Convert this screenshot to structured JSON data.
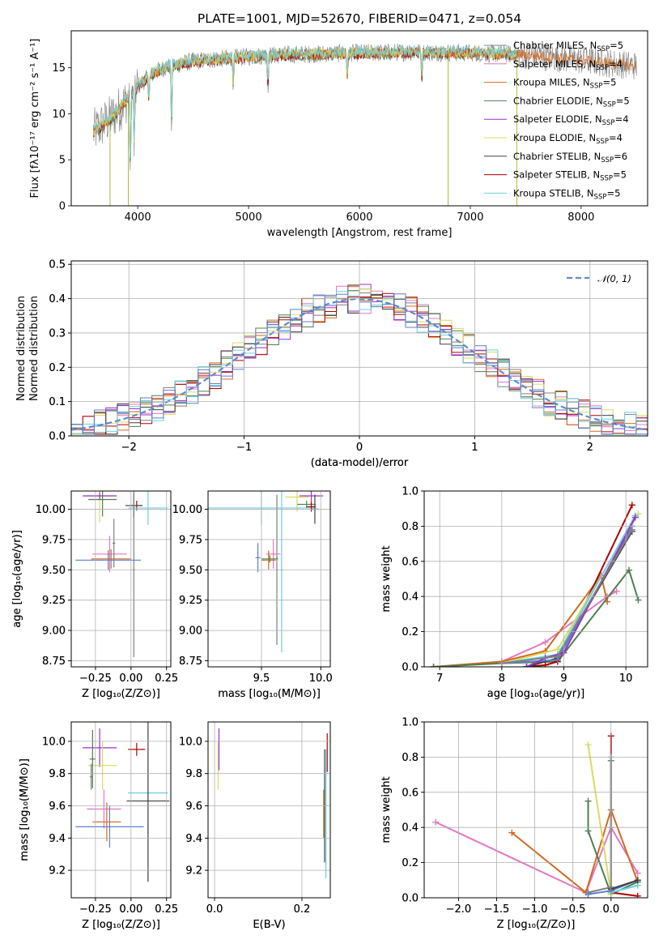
{
  "colors": {
    "Chabrier MILES": "#7f7f7f",
    "Salpeter MILES": "#e377c2",
    "Kroupa MILES": "#d2691e",
    "Chabrier ELODIE": "#4f7f4f",
    "Salpeter ELODIE": "#9932cc",
    "Kroupa ELODIE": "#dbdb60",
    "Chabrier STELIB": "#404040",
    "Salpeter STELIB": "#b00000",
    "Kroupa STELIB": "#6ad0e0",
    "extra_blue": "#5b7fcf",
    "normal_curve": "#5b8bd0"
  },
  "chart_data": [
    {
      "id": "spectrum",
      "type": "line",
      "title": "PLATE=1001, MJD=52670, FIBERID=0471, z=0.054",
      "xlabel": "wavelength [Angstrom, rest frame]",
      "ylabel": "Flux [fλ10⁻¹⁷ erg cm⁻² s⁻¹ A⁻¹]",
      "xlim": [
        3400,
        8600
      ],
      "ylim": [
        0,
        19
      ],
      "xticks": [
        "4000",
        "5000",
        "6000",
        "7000",
        "8000"
      ],
      "yticks": [
        "0",
        "5",
        "10",
        "15"
      ],
      "legend_position": "right",
      "legend": [
        {
          "model": "Chabrier MILES",
          "label": "Chabrier MILES, N",
          "sub": "SSP",
          "suffix": "=5"
        },
        {
          "model": "Salpeter MILES",
          "label": "Salpeter MILES, N",
          "sub": "SSP",
          "suffix": "=4"
        },
        {
          "model": "Kroupa MILES",
          "label": "Kroupa MILES, N",
          "sub": "SSP",
          "suffix": "=5"
        },
        {
          "model": "Chabrier ELODIE",
          "label": "Chabrier ELODIE, N",
          "sub": "SSP",
          "suffix": "=5"
        },
        {
          "model": "Salpeter ELODIE",
          "label": "Salpeter ELODIE, N",
          "sub": "SSP",
          "suffix": "=4"
        },
        {
          "model": "Kroupa ELODIE",
          "label": "Kroupa ELODIE, N",
          "sub": "SSP",
          "suffix": "=4"
        },
        {
          "model": "Chabrier STELIB",
          "label": "Chabrier STELIB, N",
          "sub": "SSP",
          "suffix": "=6"
        },
        {
          "model": "Salpeter STELIB",
          "label": "Salpeter STELIB, N",
          "sub": "SSP",
          "suffix": "=5"
        },
        {
          "model": "Kroupa STELIB",
          "label": "Kroupa STELIB, N",
          "sub": "SSP",
          "suffix": "=5"
        }
      ],
      "continuum": {
        "x": [
          3600,
          3700,
          3800,
          3900,
          4000,
          4100,
          4200,
          4300,
          4500,
          4700,
          5000,
          5300,
          5600,
          6000,
          6500,
          7000,
          7500,
          8000,
          8500
        ],
        "y": [
          8.0,
          9.0,
          10.0,
          11.5,
          13.0,
          14.0,
          14.8,
          15.2,
          15.7,
          15.9,
          16.2,
          16.4,
          16.5,
          16.6,
          16.7,
          16.6,
          16.4,
          15.8,
          15.2
        ]
      },
      "absorption_dips": [
        {
          "x": 3933,
          "y": 3.5
        },
        {
          "x": 3968,
          "y": 6.5
        },
        {
          "x": 4101,
          "y": 11.5
        },
        {
          "x": 4305,
          "y": 8.5
        },
        {
          "x": 4861,
          "y": 13.5
        },
        {
          "x": 5175,
          "y": 13.0
        },
        {
          "x": 5890,
          "y": 14.0
        },
        {
          "x": 6563,
          "y": 14.0
        }
      ],
      "spikes": [
        {
          "x": 3750,
          "y": 0
        },
        {
          "x": 3915,
          "y": 0
        },
        {
          "x": 6800,
          "y": 0
        },
        {
          "x": 7420,
          "y": 0
        }
      ]
    },
    {
      "id": "residuals",
      "type": "step",
      "xlabel": "(data-model)/error",
      "ylabel": "Normed distribution",
      "xlim": [
        -2.5,
        2.5
      ],
      "ylim": [
        0,
        0.51
      ],
      "xticks": [
        "−2",
        "−1",
        "0",
        "1",
        "2"
      ],
      "yticks": [
        "0.0",
        "0.1",
        "0.2",
        "0.3",
        "0.4",
        "0.5"
      ],
      "legend": [
        {
          "label": "𝒩(0, 1)",
          "style": "dashed"
        }
      ],
      "bin_width": 0.1,
      "x_start": -2.5,
      "normal_mean": 0,
      "normal_sigma": 1
    },
    {
      "id": "age_vs_Z",
      "type": "errorbar",
      "xlabel": "Z [log₁₀(Z/Z⊙)]",
      "ylabel": "age  [log₁₀(age/yr)]",
      "xlim": [
        -0.42,
        0.28
      ],
      "ylim": [
        8.7,
        10.15
      ],
      "xticks": [
        "−0.25",
        "0.00",
        "0.25"
      ],
      "yticks": [
        "8.75",
        "9.00",
        "9.25",
        "9.50",
        "9.75",
        "10.00"
      ],
      "points": [
        {
          "model": "Kroupa ELODIE",
          "x": -0.22,
          "xerr": 0.1,
          "y": 10.11,
          "yerr": 0.22
        },
        {
          "model": "Salpeter ELODIE",
          "x": -0.22,
          "xerr": 0.12,
          "y": 10.11,
          "yerr": 0.03
        },
        {
          "model": "Chabrier ELODIE",
          "x": -0.2,
          "xerr": 0.1,
          "y": 10.08,
          "yerr": 0.14
        },
        {
          "model": "Salpeter STELIB",
          "x": 0.04,
          "xerr": 0.04,
          "y": 10.03,
          "yerr": 0.04
        },
        {
          "model": "Chabrier STELIB",
          "x": 0.02,
          "xerr": 0.06,
          "y": 10.03,
          "yerr": 0.1
        },
        {
          "model": "Kroupa STELIB",
          "x": 0.12,
          "xerr": 0.14,
          "y": 10.01,
          "yerr": 0.14
        },
        {
          "model": "Chabrier MILES",
          "x": 0.02,
          "xerr": 0.01,
          "y": 9.5,
          "yerr": 0.72
        },
        {
          "model": "Salpeter MILES",
          "x": -0.15,
          "xerr": 0.12,
          "y": 9.63,
          "yerr": 0.15
        },
        {
          "model": "Kroupa MILES",
          "x": -0.14,
          "xerr": 0.14,
          "y": 9.59,
          "yerr": 0.08
        },
        {
          "model": "extra_blue",
          "x": -0.16,
          "xerr": 0.23,
          "y": 9.58,
          "yerr": 0.08
        },
        {
          "model": "Chabrier MILES",
          "x": -0.12,
          "xerr": 0.01,
          "y": 9.72,
          "yerr": 0.2
        }
      ]
    },
    {
      "id": "age_vs_mass",
      "type": "errorbar",
      "xlabel": "mass [log₁₀(M/M⊙)]",
      "ylabel": "",
      "xlim": [
        9.05,
        10.08
      ],
      "ylim": [
        8.7,
        10.15
      ],
      "xticks": [
        "9.5",
        "10.0"
      ],
      "yticks": [
        "8.75",
        "9.00",
        "9.25",
        "9.50",
        "9.75",
        "10.00"
      ],
      "points": [
        {
          "model": "Salpeter ELODIE",
          "x": 9.92,
          "xerr": 0.1,
          "y": 10.11,
          "yerr": 0.1
        },
        {
          "model": "Kroupa ELODIE",
          "x": 9.8,
          "xerr": 0.1,
          "y": 10.1,
          "yerr": 0.12
        },
        {
          "model": "Chabrier ELODIE",
          "x": 9.88,
          "xerr": 0.08,
          "y": 10.04,
          "yerr": 0.03
        },
        {
          "model": "Kroupa STELIB",
          "x": 9.5,
          "xerr": 0.45,
          "y": 10.01,
          "yerr": 0.14
        },
        {
          "model": "Salpeter STELIB",
          "x": 9.92,
          "xerr": 0.04,
          "y": 10.02,
          "yerr": 0.04
        },
        {
          "model": "Chabrier MILES",
          "x": 9.63,
          "xerr": 0.01,
          "y": 9.5,
          "yerr": 0.62
        },
        {
          "model": "Kroupa STELIB",
          "x": 9.67,
          "xerr": 0.01,
          "y": 9.5,
          "yerr": 0.68
        },
        {
          "model": "Salpeter MILES",
          "x": 9.6,
          "xerr": 0.06,
          "y": 9.63,
          "yerr": 0.12
        },
        {
          "model": "Kroupa MILES",
          "x": 9.56,
          "xerr": 0.06,
          "y": 9.58,
          "yerr": 0.08
        },
        {
          "model": "Chabrier ELODIE",
          "x": 9.57,
          "xerr": 0.07,
          "y": 9.59,
          "yerr": 0.03
        },
        {
          "model": "extra_blue",
          "x": 9.47,
          "xerr": 0.02,
          "y": 9.6,
          "yerr": 0.12
        },
        {
          "model": "Chabrier STELIB",
          "x": 9.95,
          "xerr": 0.03,
          "y": 10.0,
          "yerr": 0.12
        }
      ]
    },
    {
      "id": "weight_vs_age",
      "type": "line",
      "xlabel": "age  [log₁₀(age/yr)]",
      "ylabel": "mass weight",
      "xlim": [
        6.75,
        10.35
      ],
      "ylim": [
        0,
        1
      ],
      "xticks": [
        "7",
        "8",
        "9",
        "10"
      ],
      "yticks": [
        "0.0",
        "0.2",
        "0.4",
        "0.6",
        "0.8",
        "1.0"
      ],
      "series": [
        {
          "model": "Salpeter MILES",
          "x": [
            6.9,
            8.0,
            8.7,
            9.7,
            9.85
          ],
          "y": [
            0.0,
            0.03,
            0.14,
            0.4,
            0.43
          ]
        },
        {
          "model": "Kroupa MILES",
          "x": [
            6.9,
            8.0,
            8.7,
            9.6,
            9.7
          ],
          "y": [
            0.0,
            0.03,
            0.09,
            0.52,
            0.37
          ]
        },
        {
          "model": "Chabrier ELODIE",
          "x": [
            6.9,
            8.0,
            8.9,
            10.05,
            10.2
          ],
          "y": [
            0.0,
            0.02,
            0.03,
            0.55,
            0.38
          ]
        },
        {
          "model": "Salpeter STELIB",
          "x": [
            8.4,
            8.7,
            8.9,
            10.1
          ],
          "y": [
            0.0,
            0.01,
            0.03,
            0.92
          ]
        },
        {
          "model": "Chabrier STELIB",
          "x": [
            8.4,
            8.9,
            10.1
          ],
          "y": [
            0.0,
            0.05,
            0.77
          ]
        },
        {
          "model": "extra_blue",
          "x": [
            8.0,
            8.9,
            10.1
          ],
          "y": [
            0.02,
            0.04,
            0.8
          ]
        },
        {
          "model": "Kroupa ELODIE",
          "x": [
            8.0,
            8.9,
            10.2
          ],
          "y": [
            0.02,
            0.1,
            0.87
          ]
        },
        {
          "model": "Kroupa STELIB",
          "x": [
            8.0,
            8.9,
            10.15
          ],
          "y": [
            0.02,
            0.07,
            0.86
          ]
        },
        {
          "model": "Salpeter ELODIE",
          "x": [
            8.4,
            8.7,
            9.0,
            10.15
          ],
          "y": [
            0.0,
            0.05,
            0.08,
            0.85
          ]
        },
        {
          "model": "Chabrier MILES",
          "x": [
            8.0,
            8.9,
            10.1
          ],
          "y": [
            0.02,
            0.06,
            0.78
          ]
        }
      ]
    },
    {
      "id": "mass_vs_Z",
      "type": "errorbar",
      "xlabel": "Z [log₁₀(Z/Z⊙)]",
      "ylabel": "mass [log₁₀(M/M⊙)]",
      "xlim": [
        -0.42,
        0.28
      ],
      "ylim": [
        9.03,
        10.12
      ],
      "xticks": [
        "−0.25",
        "0.00",
        "0.25"
      ],
      "yticks": [
        "9.2",
        "9.4",
        "9.6",
        "9.8",
        "10.0"
      ],
      "points": [
        {
          "model": "Salpeter ELODIE",
          "x": -0.22,
          "xerr": 0.12,
          "y": 9.96,
          "yerr": 0.12
        },
        {
          "model": "Salpeter STELIB",
          "x": 0.04,
          "xerr": 0.06,
          "y": 9.95,
          "yerr": 0.04
        },
        {
          "model": "Kroupa ELODIE",
          "x": -0.2,
          "xerr": 0.1,
          "y": 9.85,
          "yerr": 0.15
        },
        {
          "model": "Chabrier ELODIE",
          "x": -0.27,
          "xerr": 0.02,
          "y": 9.89,
          "yerr": 0.18
        },
        {
          "model": "Kroupa STELIB",
          "x": 0.12,
          "xerr": 0.14,
          "y": 9.68,
          "yerr": 0.25
        },
        {
          "model": "Chabrier STELIB",
          "x": 0.12,
          "xerr": 0.15,
          "y": 9.63,
          "yerr": 0.5
        },
        {
          "model": "Salpeter MILES",
          "x": -0.19,
          "xerr": 0.12,
          "y": 9.58,
          "yerr": 0.12
        },
        {
          "model": "Kroupa MILES",
          "x": -0.17,
          "xerr": 0.1,
          "y": 9.5,
          "yerr": 0.12
        },
        {
          "model": "extra_blue",
          "x": -0.15,
          "xerr": 0.24,
          "y": 9.47,
          "yerr": 0.13
        },
        {
          "model": "Chabrier MILES",
          "x": -0.28,
          "xerr": 0.01,
          "y": 9.78,
          "yerr": 0.08
        }
      ]
    },
    {
      "id": "mass_vs_EBV",
      "type": "errorbar",
      "xlabel": "E(B-V)",
      "ylabel": "",
      "xlim": [
        -0.015,
        0.265
      ],
      "ylim": [
        9.03,
        10.12
      ],
      "xticks": [
        "0.0",
        "0.2"
      ],
      "yticks": [
        "9.2",
        "9.4",
        "9.6",
        "9.8",
        "10.0"
      ],
      "points": [
        {
          "model": "Salpeter ELODIE",
          "x": 0.01,
          "xerr": 0.0,
          "y": 9.95,
          "yerr": 0.13
        },
        {
          "model": "Kroupa ELODIE",
          "x": 0.008,
          "xerr": 0.0,
          "y": 9.85,
          "yerr": 0.15
        },
        {
          "model": "Salpeter STELIB",
          "x": 0.258,
          "xerr": 0.0,
          "y": 9.93,
          "yerr": 0.12
        },
        {
          "model": "Chabrier STELIB",
          "x": 0.252,
          "xerr": 0.0,
          "y": 9.6,
          "yerr": 0.35
        },
        {
          "model": "Kroupa STELIB",
          "x": 0.255,
          "xerr": 0.0,
          "y": 9.55,
          "yerr": 0.4
        },
        {
          "model": "Kroupa MILES",
          "x": 0.25,
          "xerr": 0.0,
          "y": 9.55,
          "yerr": 0.15
        }
      ]
    },
    {
      "id": "weight_vs_Z",
      "type": "line",
      "xlabel": "Z [log₁₀(Z/Z⊙)]",
      "ylabel": "mass weight",
      "xlim": [
        -2.45,
        0.48
      ],
      "ylim": [
        0,
        1
      ],
      "xticks": [
        "−2.0",
        "−1.5",
        "−1.0",
        "−0.5",
        "0.0"
      ],
      "yticks": [
        "0.0",
        "0.2",
        "0.4",
        "0.6",
        "0.8",
        "1.0"
      ],
      "series": [
        {
          "model": "Salpeter MILES",
          "x": [
            -2.3,
            -0.33,
            0.0,
            0.35
          ],
          "y": [
            0.43,
            0.03,
            0.4,
            0.14
          ]
        },
        {
          "model": "Kroupa MILES",
          "x": [
            -1.3,
            -0.33,
            0.0,
            0.35
          ],
          "y": [
            0.37,
            0.03,
            0.5,
            0.09
          ]
        },
        {
          "model": "Chabrier ELODIE",
          "x": [
            -0.3,
            -0.3,
            0.0,
            0.35
          ],
          "y": [
            0.55,
            0.38,
            0.02,
            0.09
          ]
        },
        {
          "model": "Kroupa ELODIE",
          "x": [
            -0.3,
            0.0
          ],
          "y": [
            0.87,
            0.02
          ]
        },
        {
          "model": "Salpeter STELIB",
          "x": [
            0.0,
            0.0,
            0.35
          ],
          "y": [
            0.92,
            0.03,
            0.01
          ]
        },
        {
          "model": "Kroupa STELIB",
          "x": [
            0.0,
            0.0,
            0.35
          ],
          "y": [
            0.8,
            0.03,
            0.07
          ]
        },
        {
          "model": "Chabrier MILES",
          "x": [
            -0.3,
            0.0,
            0.0
          ],
          "y": [
            0.03,
            0.06,
            0.78
          ]
        },
        {
          "model": "extra_blue",
          "x": [
            -0.3,
            0.0,
            0.35
          ],
          "y": [
            0.02,
            0.04,
            0.1
          ]
        },
        {
          "model": "Chabrier STELIB",
          "x": [
            0.0,
            0.35
          ],
          "y": [
            0.05,
            0.1
          ]
        }
      ]
    }
  ]
}
